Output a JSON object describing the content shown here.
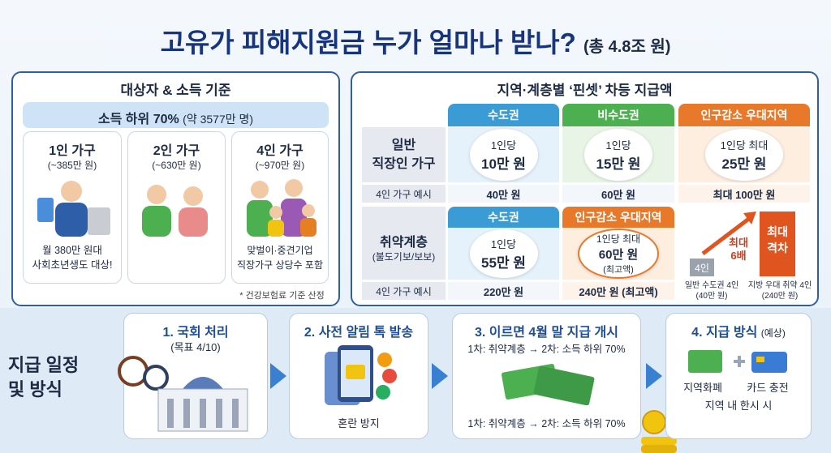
{
  "header": {
    "title": "고유가 피해지원금 누가 얼마나 받나?",
    "subtitle": "(총 4.8조 원)"
  },
  "eligibility": {
    "title": "대상자 & 소득 기준",
    "income": "소득 하위 70%",
    "population": "(약 3577만 명)",
    "households": [
      {
        "title": "1인 가구",
        "limit": "(~385만 원)",
        "note": [
          "월 380만 원대",
          "사회초년생도 대상!"
        ]
      },
      {
        "title": "2인 가구",
        "limit": "(~630만 원)"
      },
      {
        "title": "4인 가구",
        "limit": "(~970만 원)",
        "note": [
          "맞벌이·중견기업",
          "직장가구 상당수 포함"
        ]
      }
    ],
    "footnote": "* 건강보험료 기준 산정"
  },
  "payments": {
    "title": "지역·계층별 ‘핀셋’ 차등 지급액",
    "general": {
      "label": [
        "일반",
        "직장인 가구"
      ],
      "columns": [
        "수도권",
        "비수도권",
        "인구감소 우대지역"
      ],
      "per_person": [
        [
          "1인당",
          "10만 원"
        ],
        [
          "1인당",
          "15만 원"
        ],
        [
          "1인당 최대",
          "25만 원"
        ]
      ],
      "example_label": "4인 가구 예시",
      "examples": [
        "40만 원",
        "60만 원",
        "최대 100만 원"
      ]
    },
    "vulnerable": {
      "label": "취약계층",
      "sublabel": "(불도기보/보보)",
      "columns": [
        "수도권",
        "인구감소 우대지역"
      ],
      "per_person": [
        [
          "1인당",
          "55만 원"
        ],
        [
          "1인당 최대",
          "60만 원",
          "(최고액)"
        ]
      ],
      "example_label": "4인 가구 예시",
      "examples": [
        "220만 원",
        "240만 원 (최고액)"
      ]
    },
    "gap": {
      "low": "4인",
      "arrow": [
        "최대",
        "6배"
      ],
      "high": [
        "최대",
        "격차"
      ],
      "captions": [
        [
          "일반 수도권 4인",
          "(40만 원)"
        ],
        [
          "지방 우대 취약 4인",
          "(240만 원)"
        ]
      ]
    }
  },
  "schedule": {
    "label": [
      "지급 일정",
      "및 방식"
    ],
    "steps": [
      {
        "title": "1. 국회 처리",
        "detail": "(목표 4/10)"
      },
      {
        "title": "2. 사전 알림 톡 발송",
        "detail": "혼란 방지"
      },
      {
        "title": "3. 이르면 4월 말 지급 개시",
        "phases": [
          "1차: 취약계층 → 2차: 소득 하위 70%",
          "1차: 취약계층 → 2차: 소득 하위 70%"
        ]
      },
      {
        "title": "4. 지급 방식",
        "detail": "(예상)",
        "options": [
          "지역화폐",
          "카드 충전"
        ],
        "note": "지역 내 한시 시"
      }
    ]
  }
}
